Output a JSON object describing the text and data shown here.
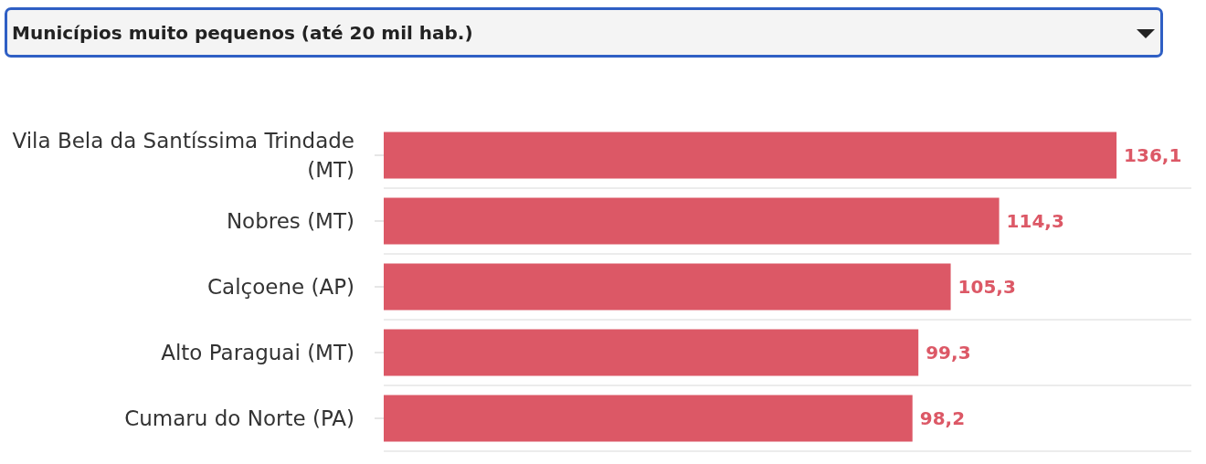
{
  "chart_data": {
    "type": "bar",
    "orientation": "horizontal",
    "title": "Municípios muito pequenos (até 20 mil hab.)",
    "categories": [
      "Vila Bela da Santíssima Trindade (MT)",
      "Nobres (MT)",
      "Calçoene (AP)",
      "Alto Paraguai (MT)",
      "Cumaru do Norte (PA)"
    ],
    "values": [
      136.1,
      114.3,
      105.3,
      99.3,
      98.2
    ],
    "value_labels": [
      "136,1",
      "114,3",
      "105,3",
      "99,3",
      "98,2"
    ],
    "color": "#dc5866",
    "grid": "y",
    "tick_labels": "y"
  }
}
